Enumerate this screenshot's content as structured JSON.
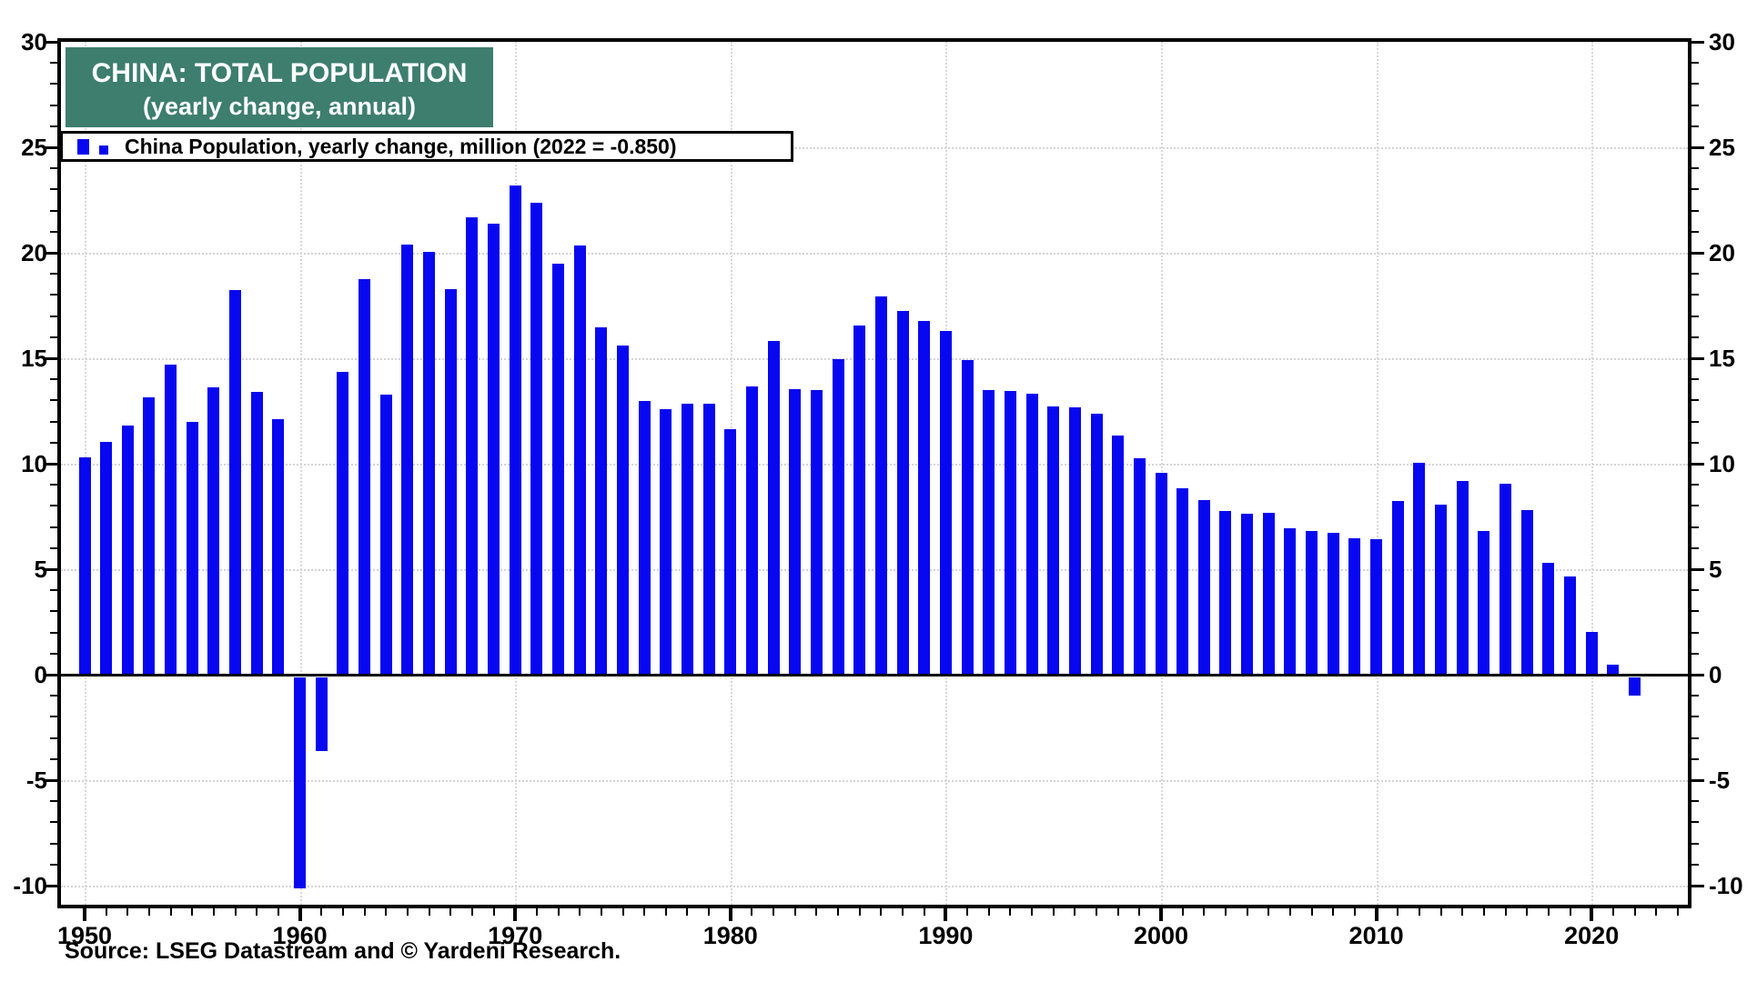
{
  "title_box": {
    "line1": "CHINA: TOTAL POPULATION",
    "line2": "(yearly change, annual)",
    "bg_color": "#3d7e6f",
    "text_color": "#ffffff"
  },
  "legend": {
    "label": "China Population, yearly change, million (2022 = -0.850)",
    "marker_color": "#0707f0"
  },
  "source": {
    "text": "Source: LSEG Datastream and © Yardeni Research."
  },
  "chart_data": {
    "type": "bar",
    "title": "CHINA: TOTAL POPULATION (yearly change, annual)",
    "xlabel": "",
    "ylabel": "",
    "ylim": [
      -11,
      30
    ],
    "y_ticks": [
      -10,
      -5,
      0,
      5,
      10,
      15,
      20,
      25,
      30
    ],
    "y_minor_tick_step": 1,
    "x_tick_labels": [
      "1950",
      "1960",
      "1970",
      "1980",
      "1990",
      "2000",
      "2010",
      "2020"
    ],
    "grid": true,
    "grid_style": "dotted",
    "legend_position": "top-left",
    "bar_color": "#0707f0",
    "series": [
      {
        "name": "China Population, yearly change, million",
        "x": [
          1950,
          1951,
          1952,
          1953,
          1954,
          1955,
          1956,
          1957,
          1958,
          1959,
          1960,
          1961,
          1962,
          1963,
          1964,
          1965,
          1966,
          1967,
          1968,
          1969,
          1970,
          1971,
          1972,
          1973,
          1974,
          1975,
          1976,
          1977,
          1978,
          1979,
          1980,
          1981,
          1982,
          1983,
          1984,
          1985,
          1986,
          1987,
          1988,
          1989,
          1990,
          1991,
          1992,
          1993,
          1994,
          1995,
          1996,
          1997,
          1998,
          1999,
          2000,
          2001,
          2002,
          2003,
          2004,
          2005,
          2006,
          2007,
          2008,
          2009,
          2010,
          2011,
          2012,
          2013,
          2014,
          2015,
          2016,
          2017,
          2018,
          2019,
          2020,
          2021,
          2022
        ],
        "values": [
          10.29,
          11.04,
          11.82,
          13.14,
          14.7,
          11.99,
          13.63,
          18.25,
          13.41,
          12.13,
          -10.0,
          -3.48,
          14.36,
          18.77,
          13.27,
          20.39,
          20.04,
          18.26,
          21.66,
          21.37,
          23.21,
          22.37,
          19.48,
          20.34,
          16.48,
          15.61,
          12.97,
          12.57,
          12.85,
          12.83,
          11.63,
          13.67,
          15.82,
          13.54,
          13.49,
          14.94,
          16.56,
          17.93,
          17.26,
          16.78,
          16.29,
          14.9,
          13.48,
          13.46,
          13.33,
          12.71,
          12.68,
          12.37,
          11.35,
          10.25,
          9.57,
          8.84,
          8.26,
          7.74,
          7.61,
          7.68,
          6.92,
          6.81,
          6.73,
          6.48,
          6.41,
          8.25,
          10.06,
          8.04,
          9.2,
          6.8,
          9.06,
          7.79,
          5.3,
          4.67,
          2.04,
          0.48,
          -0.85
        ]
      }
    ]
  }
}
